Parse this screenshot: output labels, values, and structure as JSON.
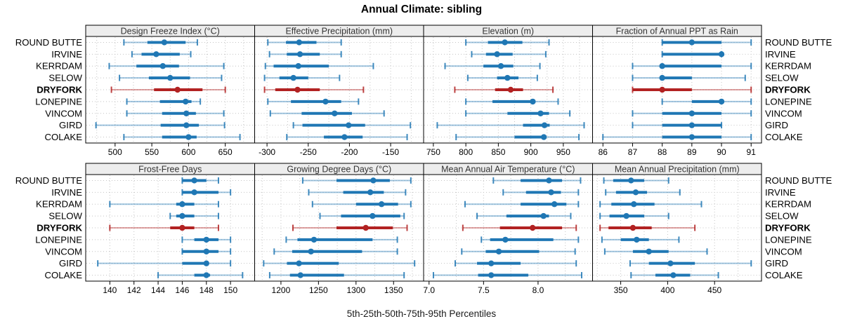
{
  "colors": {
    "normal": "#1f77b4",
    "highlight": "#b22222",
    "strip_bg": "#ededed",
    "strip_text": "#333333",
    "grid": "#c4c4c4",
    "border": "#000000",
    "text": "#000000"
  },
  "chart_data": {
    "type": "dot-whisker percentile trellis (lattice)",
    "title": "Annual Climate: sibling",
    "caption": "5th-25th-50th-75th-95th Percentiles",
    "percentiles": [
      5,
      25,
      50,
      75,
      95
    ],
    "legend_position": "none",
    "grid": "dotted vertical at ticks and dotted horizontal per row",
    "stations": [
      "ROUND BUTTE",
      "IRVINE",
      "KERRDAM",
      "SELOW",
      "DRYFORK",
      "LONEPINE",
      "VINCOM",
      "GIRD",
      "COLAKE"
    ],
    "highlight_station": "DRYFORK",
    "layout": {
      "rows": 2,
      "cols": 4
    },
    "panels": [
      {
        "title": "Design Freeze Index (°C)",
        "xlim": [
          460,
          690
        ],
        "tick_values": [
          500,
          550,
          600,
          650
        ],
        "tick_labels": [
          "500",
          "550",
          "600",
          "650"
        ],
        "grid": [
          475,
          500,
          525,
          550,
          575,
          600,
          625,
          650,
          675
        ],
        "series": [
          [
            512,
            544,
            567,
            596,
            612
          ],
          [
            523,
            536,
            556,
            588,
            603
          ],
          [
            492,
            529,
            565,
            587,
            648
          ],
          [
            506,
            546,
            575,
            602,
            645
          ],
          [
            495,
            553,
            585,
            619,
            650
          ],
          [
            516,
            561,
            596,
            604,
            616
          ],
          [
            516,
            564,
            597,
            610,
            648
          ],
          [
            474,
            562,
            597,
            614,
            649
          ],
          [
            512,
            564,
            600,
            611,
            670
          ]
        ]
      },
      {
        "title": "Effective Precipitation (mm)",
        "xlim": [
          -315,
          -110
        ],
        "tick_values": [
          -300,
          -250,
          -200,
          -150
        ],
        "tick_labels": [
          "-300",
          "-250",
          "-200",
          "-150"
        ],
        "grid": [
          -300,
          -275,
          -250,
          -225,
          -200,
          -175,
          -150,
          -125
        ],
        "series": [
          [
            -299,
            -277,
            -261,
            -240,
            -210
          ],
          [
            -297,
            -276,
            -260,
            -236,
            -210
          ],
          [
            -302,
            -292,
            -262,
            -225,
            -171
          ],
          [
            -303,
            -285,
            -268,
            -250,
            -212
          ],
          [
            -303,
            -290,
            -263,
            -236,
            -183
          ],
          [
            -299,
            -271,
            -229,
            -210,
            -189
          ],
          [
            -296,
            -258,
            -218,
            -197,
            -158
          ],
          [
            -268,
            -257,
            -201,
            -181,
            -126
          ],
          [
            -276,
            -231,
            -206,
            -184,
            -130
          ]
        ]
      },
      {
        "title": "Elevation (m)",
        "xlim": [
          735,
          995
        ],
        "tick_values": [
          750,
          800,
          850,
          900,
          950
        ],
        "tick_labels": [
          "750",
          "800",
          "850",
          "900",
          "950"
        ],
        "grid": [
          750,
          775,
          800,
          825,
          850,
          875,
          900,
          925,
          950,
          975
        ],
        "series": [
          [
            800,
            834,
            860,
            887,
            928
          ],
          [
            809,
            831,
            848,
            872,
            923
          ],
          [
            768,
            827,
            854,
            873,
            914
          ],
          [
            803,
            848,
            864,
            881,
            910
          ],
          [
            783,
            845,
            869,
            888,
            934
          ],
          [
            800,
            841,
            903,
            907,
            942
          ],
          [
            800,
            864,
            915,
            928,
            960
          ],
          [
            756,
            888,
            921,
            929,
            982
          ],
          [
            785,
            875,
            920,
            924,
            974
          ]
        ]
      },
      {
        "title": "Fraction of Annual PPT as Rain",
        "xlim": [
          85.65,
          91.35
        ],
        "tick_values": [
          86,
          87,
          88,
          89,
          90,
          91
        ],
        "tick_labels": [
          "86",
          "87",
          "88",
          "89",
          "90",
          "91"
        ],
        "grid": [
          86,
          87,
          88,
          89,
          90,
          91
        ],
        "series": [
          [
            88,
            88,
            89,
            90,
            91
          ],
          [
            88,
            88,
            90,
            90,
            90
          ],
          [
            87,
            88,
            88,
            90,
            91
          ],
          [
            87,
            88,
            88,
            89,
            90.8
          ],
          [
            87,
            87,
            88,
            89,
            91
          ],
          [
            88,
            89,
            90,
            90,
            91
          ],
          [
            87,
            88,
            89,
            90,
            91
          ],
          [
            87,
            88,
            89,
            90,
            90
          ],
          [
            86,
            88,
            89,
            90,
            91
          ]
        ]
      },
      {
        "title": "Frost-Free Days",
        "xlim": [
          138,
          152
        ],
        "tick_values": [
          140,
          142,
          144,
          146,
          148,
          150
        ],
        "tick_labels": [
          "140",
          "142",
          "144",
          "146",
          "148",
          "150"
        ],
        "grid": [
          140,
          142,
          144,
          146,
          148,
          150
        ],
        "series": [
          [
            146,
            146,
            147,
            148,
            149
          ],
          [
            146,
            146,
            147,
            149,
            150
          ],
          [
            140,
            145.5,
            146,
            147,
            149
          ],
          [
            145,
            145.5,
            146,
            147,
            149
          ],
          [
            140,
            145,
            146,
            147,
            149
          ],
          [
            146,
            147,
            148,
            149,
            150
          ],
          [
            146,
            146,
            148,
            149,
            150
          ],
          [
            139,
            146,
            148,
            148.2,
            150
          ],
          [
            144,
            147,
            148,
            148.3,
            151
          ]
        ]
      },
      {
        "title": "Growing Degree Days (°C)",
        "xlim": [
          1165,
          1390
        ],
        "tick_values": [
          1200,
          1250,
          1300,
          1350
        ],
        "tick_labels": [
          "1200",
          "1250",
          "1300",
          "1350"
        ],
        "grid": [
          1175,
          1200,
          1225,
          1250,
          1275,
          1300,
          1325,
          1350,
          1375
        ],
        "series": [
          [
            1229,
            1274,
            1323,
            1345,
            1373
          ],
          [
            1237,
            1283,
            1319,
            1337,
            1366
          ],
          [
            1242,
            1300,
            1334,
            1356,
            1373
          ],
          [
            1252,
            1280,
            1322,
            1359,
            1364
          ],
          [
            1216,
            1274,
            1313,
            1349,
            1368
          ],
          [
            1207,
            1222,
            1244,
            1322,
            1355
          ],
          [
            1191,
            1215,
            1240,
            1308,
            1355
          ],
          [
            1177,
            1208,
            1224,
            1277,
            1378
          ],
          [
            1185,
            1212,
            1226,
            1284,
            1364
          ]
        ]
      },
      {
        "title": "Mean Annual Air Temperature (°C)",
        "xlim": [
          6.95,
          8.5
        ],
        "tick_values": [
          7.0,
          7.5,
          8.0
        ],
        "tick_labels": [
          "7.0",
          "7.5",
          "8.0"
        ],
        "grid": [
          7.0,
          7.25,
          7.5,
          7.75,
          8.0,
          8.25
        ],
        "series": [
          [
            7.59,
            7.84,
            8.1,
            8.22,
            8.39
          ],
          [
            7.68,
            7.89,
            8.12,
            8.21,
            8.37
          ],
          [
            7.33,
            7.84,
            8.15,
            8.26,
            8.37
          ],
          [
            7.44,
            7.71,
            8.05,
            8.1,
            8.3
          ],
          [
            7.31,
            7.65,
            7.95,
            8.22,
            8.35
          ],
          [
            7.48,
            7.56,
            7.7,
            8.14,
            8.37
          ],
          [
            7.3,
            7.52,
            7.64,
            8.01,
            8.34
          ],
          [
            7.24,
            7.44,
            7.57,
            7.84,
            8.35
          ],
          [
            7.04,
            7.45,
            7.57,
            7.91,
            8.4
          ]
        ]
      },
      {
        "title": "Mean Annual Precipitation (mm)",
        "xlim": [
          320,
          500
        ],
        "tick_values": [
          350,
          400,
          450
        ],
        "tick_labels": [
          "350",
          "400",
          "450"
        ],
        "grid": [
          325,
          350,
          375,
          400,
          425,
          450,
          475
        ],
        "series": [
          [
            332,
            342,
            361,
            375,
            401
          ],
          [
            334,
            345,
            366,
            378,
            413
          ],
          [
            328,
            340,
            364,
            386,
            436
          ],
          [
            328,
            338,
            356,
            375,
            401
          ],
          [
            328,
            337,
            363,
            383,
            429
          ],
          [
            330,
            350,
            367,
            380,
            412
          ],
          [
            333,
            363,
            380,
            401,
            442
          ],
          [
            360,
            380,
            403,
            429,
            489
          ],
          [
            361,
            387,
            406,
            424,
            454
          ]
        ]
      }
    ]
  }
}
